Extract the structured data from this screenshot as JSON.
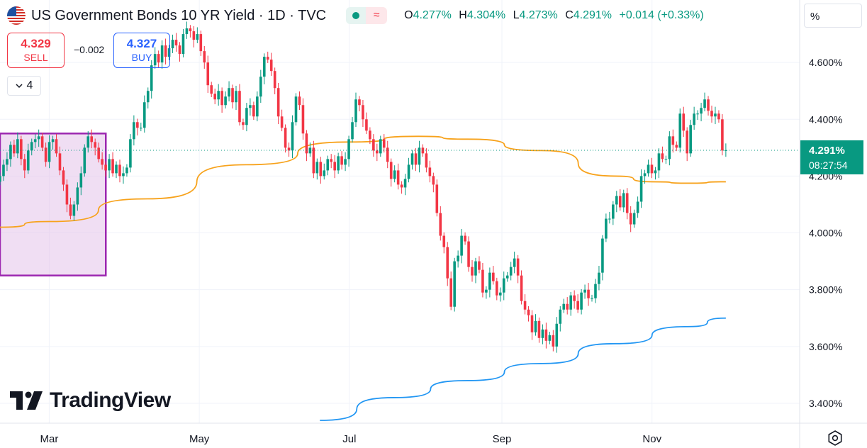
{
  "header": {
    "title": "US Government Bonds 10 YR Yield · 1D · TVC",
    "flag_icon": "us-flag-icon",
    "market_status_icon": "market-open-dot-icon",
    "indicator_icon": "approx-wave-icon",
    "ohlc": {
      "open_label": "O",
      "open": "4.277%",
      "high_label": "H",
      "high": "4.304%",
      "low_label": "L",
      "low": "4.273%",
      "close_label": "C",
      "close": "4.291%",
      "change": "+0.014 (+0.33%)"
    },
    "color_up": "#089981",
    "color_down": "#f23645"
  },
  "trade": {
    "sell_price": "4.329",
    "sell_label": "SELL",
    "spread": "−0.002",
    "buy_price": "4.327",
    "buy_label": "BUY"
  },
  "collapse": {
    "count": "4",
    "icon": "chevron-down-icon"
  },
  "scale_unit": "%",
  "logo_text": "TradingView",
  "price_label": {
    "value": "4.291%",
    "countdown": "08:27:54",
    "color": "#089981"
  },
  "settings_icon": "settings-gear-icon",
  "chart_data": {
    "type": "candlestick",
    "y_axis": {
      "ticks": [
        "4.600%",
        "4.400%",
        "4.200%",
        "4.000%",
        "3.800%",
        "3.600%",
        "3.400%"
      ],
      "tick_values": [
        4.6,
        4.4,
        4.2,
        4.0,
        3.8,
        3.6,
        3.4
      ],
      "range": [
        3.33,
        4.82
      ]
    },
    "x_axis": {
      "ticks": [
        "Mar",
        "May",
        "Jul",
        "Sep",
        "Nov"
      ],
      "tick_days": [
        0,
        61,
        122,
        184,
        245
      ],
      "range_days": [
        -20,
        305
      ]
    },
    "last_price": 4.291,
    "series": [
      {
        "kind": "candles",
        "closes": [
          4.2,
          4.24,
          4.26,
          4.31,
          4.28,
          4.33,
          4.26,
          4.22,
          4.29,
          4.32,
          4.33,
          4.34,
          4.3,
          4.25,
          4.32,
          4.33,
          4.28,
          4.22,
          4.17,
          4.1,
          4.06,
          4.1,
          4.16,
          4.21,
          4.3,
          4.34,
          4.32,
          4.3,
          4.26,
          4.24,
          4.22,
          4.26,
          4.21,
          4.24,
          4.2,
          4.21,
          4.23,
          4.33,
          4.39,
          4.37,
          4.37,
          4.46,
          4.5,
          4.59,
          4.63,
          4.6,
          4.66,
          4.62,
          4.65,
          4.68,
          4.66,
          4.63,
          4.7,
          4.72,
          4.71,
          4.68,
          4.7,
          4.64,
          4.6,
          4.52,
          4.49,
          4.47,
          4.5,
          4.45,
          4.48,
          4.51,
          4.46,
          4.5,
          4.39,
          4.38,
          4.44,
          4.45,
          4.41,
          4.48,
          4.55,
          4.62,
          4.61,
          4.57,
          4.51,
          4.41,
          4.37,
          4.3,
          4.29,
          4.39,
          4.48,
          4.45,
          4.35,
          4.28,
          4.3,
          4.21,
          4.25,
          4.2,
          4.22,
          4.26,
          4.25,
          4.22,
          4.27,
          4.24,
          4.26,
          4.33,
          4.39,
          4.47,
          4.45,
          4.4,
          4.36,
          4.33,
          4.29,
          4.28,
          4.33,
          4.3,
          4.25,
          4.19,
          4.22,
          4.17,
          4.16,
          4.19,
          4.24,
          4.28,
          4.24,
          4.3,
          4.28,
          4.23,
          4.2,
          4.17,
          4.07,
          3.99,
          3.95,
          3.84,
          3.74,
          3.9,
          3.92,
          3.99,
          3.97,
          3.88,
          3.85,
          3.9,
          3.87,
          3.79,
          3.8,
          3.86,
          3.83,
          3.78,
          3.79,
          3.84,
          3.85,
          3.88,
          3.91,
          3.85,
          3.76,
          3.73,
          3.71,
          3.65,
          3.69,
          3.63,
          3.66,
          3.62,
          3.64,
          3.6,
          3.68,
          3.73,
          3.75,
          3.73,
          3.78,
          3.76,
          3.73,
          3.79,
          3.8,
          3.77,
          3.77,
          3.82,
          3.86,
          3.98,
          4.05,
          4.05,
          4.1,
          4.13,
          4.09,
          4.14,
          4.07,
          4.03,
          4.07,
          4.11,
          4.2,
          4.21,
          4.24,
          4.21,
          4.22,
          4.28,
          4.26,
          4.26,
          4.34,
          4.31,
          4.3,
          4.42,
          4.36,
          4.28,
          4.38,
          4.42,
          4.42,
          4.44,
          4.47,
          4.43,
          4.41,
          4.42,
          4.4,
          4.29,
          4.291
        ]
      },
      {
        "kind": "line",
        "period": 200,
        "color": "#f7a21b",
        "x_days": [
          -20,
          0,
          40,
          80,
          122,
          150,
          170,
          200,
          230,
          245,
          260,
          275
        ],
        "values": [
          4.02,
          4.04,
          4.12,
          4.24,
          4.32,
          4.34,
          4.33,
          4.29,
          4.2,
          4.18,
          4.175,
          4.18
        ]
      },
      {
        "kind": "line",
        "period": 50,
        "color": "#2196f3",
        "x_days": [
          110,
          140,
          170,
          200,
          230,
          260,
          275
        ],
        "values": [
          3.34,
          3.42,
          3.48,
          3.54,
          3.61,
          3.67,
          3.7
        ]
      },
      {
        "kind": "rectangle",
        "x_days": [
          -20,
          23
        ],
        "values": [
          4.35,
          3.85
        ],
        "fill": "rgba(225,190,231,0.5)",
        "stroke": "#9c27b0"
      }
    ]
  }
}
